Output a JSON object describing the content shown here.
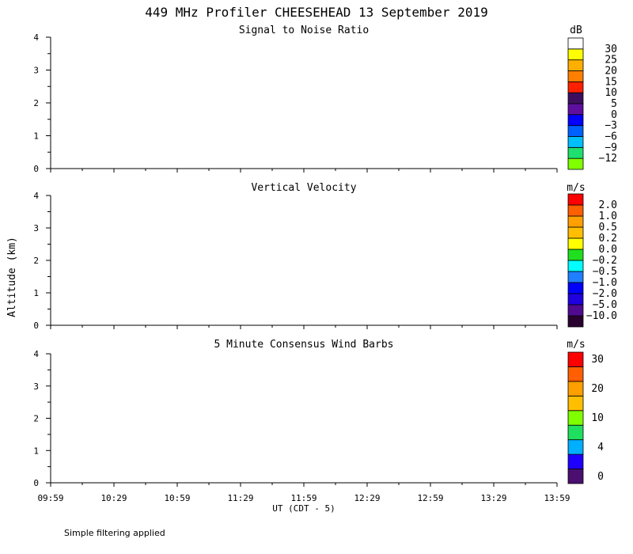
{
  "title": "449 MHz Profiler CHEESEHEAD 13 September 2019",
  "ylabel": "Altitude (km)",
  "xlabel": "UT  (CDT - 5)",
  "footnote": "Simple filtering applied",
  "x_ticks": [
    "09:59",
    "10:29",
    "10:59",
    "11:29",
    "11:59",
    "12:29",
    "12:59",
    "13:29",
    "13:59"
  ],
  "y_ticks": [
    "0",
    "1",
    "2",
    "3",
    "4"
  ],
  "chart_data": [
    {
      "type": "heatmap",
      "title": "Signal to Noise Ratio",
      "ylabel": "Altitude (km)",
      "xlabel": "UT  (CDT - 5)",
      "ylim": [
        0,
        4
      ],
      "xlim": [
        "09:59",
        "13:59"
      ],
      "values": [],
      "colorbar": {
        "unit": "dB",
        "colors": [
          "#7fff00",
          "#1fe06e",
          "#00bfff",
          "#0060ff",
          "#0000ff",
          "#5f0f9f",
          "#3f0f5f",
          "#ff2000",
          "#ff7f00",
          "#ffaf00",
          "#ffff00",
          "#ffffff"
        ],
        "labels": [
          "−12",
          "−9",
          "−6",
          "−3",
          "0",
          "5",
          "10",
          "15",
          "20",
          "25",
          "30"
        ]
      }
    },
    {
      "type": "heatmap",
      "title": "Vertical Velocity",
      "ylabel": "Altitude (km)",
      "xlabel": "UT  (CDT - 5)",
      "ylim": [
        0,
        4
      ],
      "xlim": [
        "09:59",
        "13:59"
      ],
      "values": [],
      "colorbar": {
        "unit": "m/s",
        "colors": [
          "#2a0030",
          "#4f0a8f",
          "#1f00df",
          "#0000ff",
          "#1f7fff",
          "#00ffff",
          "#1fdf1f",
          "#ffff00",
          "#ffbf00",
          "#ff9f00",
          "#ff5f00",
          "#ff0000"
        ],
        "labels": [
          "−10.0",
          "−5.0",
          "−2.0",
          "−1.0",
          "−0.5",
          "−0.2",
          "0.0",
          "0.2",
          "0.5",
          "1.0",
          "2.0"
        ]
      }
    },
    {
      "type": "scatter",
      "title": "5 Minute Consensus Wind Barbs",
      "ylabel": "Altitude (km)",
      "xlabel": "UT  (CDT - 5)",
      "ylim": [
        0,
        4
      ],
      "xlim": [
        "09:59",
        "13:59"
      ],
      "values": [],
      "colorbar": {
        "unit": "m/s",
        "colors": [
          "#4a0f6f",
          "#1f00ff",
          "#00afff",
          "#1fdf5f",
          "#7fff00",
          "#ffbf00",
          "#ff9f00",
          "#ff5f00",
          "#ff0000"
        ],
        "labels": [
          "0",
          "4",
          "10",
          "20",
          "30"
        ]
      }
    }
  ]
}
